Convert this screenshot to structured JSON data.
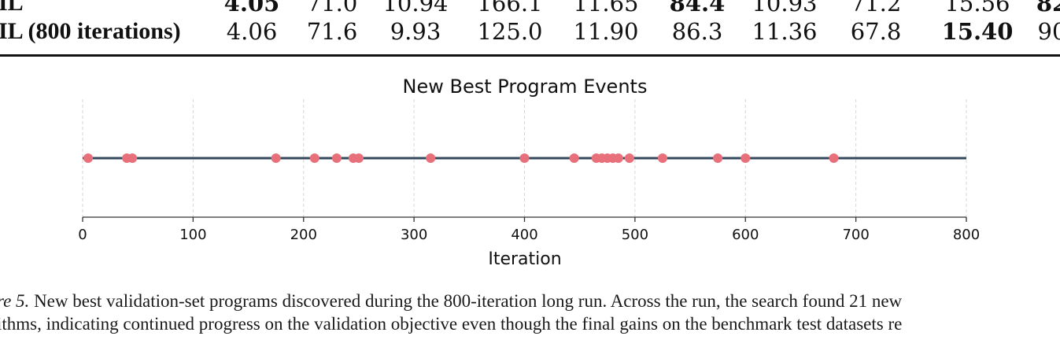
{
  "table": {
    "rows": [
      {
        "label": "IL",
        "cells": [
          {
            "text": "4.05",
            "bold": true
          },
          {
            "text": "71.0",
            "bold": false
          },
          {
            "text": "10.94",
            "bold": false
          },
          {
            "text": "166.1",
            "bold": false
          },
          {
            "text": "11.65",
            "bold": false
          },
          {
            "text": "84.4",
            "bold": true
          },
          {
            "text": "10.93",
            "bold": false
          },
          {
            "text": "71.2",
            "bold": false
          },
          {
            "text": "15.56",
            "bold": false
          },
          {
            "text": "82",
            "bold": true
          }
        ]
      },
      {
        "label": "IL (800 iterations)",
        "cells": [
          {
            "text": "4.06",
            "bold": false
          },
          {
            "text": "71.6",
            "bold": false
          },
          {
            "text": "9.93",
            "bold": false
          },
          {
            "text": "125.0",
            "bold": false
          },
          {
            "text": "11.90",
            "bold": false
          },
          {
            "text": "86.3",
            "bold": false
          },
          {
            "text": "11.36",
            "bold": false
          },
          {
            "text": "67.8",
            "bold": false
          },
          {
            "text": "15.40",
            "bold": true
          },
          {
            "text": "90",
            "bold": false
          }
        ]
      }
    ]
  },
  "chart_data": {
    "type": "scatter",
    "title": "New Best Program Events",
    "xlabel": "Iteration",
    "ylabel": "",
    "xlim": [
      0,
      800
    ],
    "xticks": [
      0,
      100,
      200,
      300,
      400,
      500,
      600,
      700,
      800
    ],
    "grid": "vertical dashed",
    "line_color": "#34495e",
    "point_color": "#e8707a",
    "series": [
      {
        "x": [
          5,
          40,
          45,
          175,
          210,
          230,
          245,
          250,
          315,
          400,
          445,
          465,
          470,
          475,
          480,
          485,
          495,
          525,
          575,
          600,
          680
        ],
        "y": [
          0,
          0,
          0,
          0,
          0,
          0,
          0,
          0,
          0,
          0,
          0,
          0,
          0,
          0,
          0,
          0,
          0,
          0,
          0,
          0,
          0
        ]
      }
    ]
  },
  "caption": {
    "label": "re 5.",
    "line1": "New best validation-set programs discovered during the 800-iteration long run. Across the run, the search found 21 new",
    "line2": "ithms, indicating continued progress on the validation objective even though the final gains on the benchmark test datasets re"
  }
}
